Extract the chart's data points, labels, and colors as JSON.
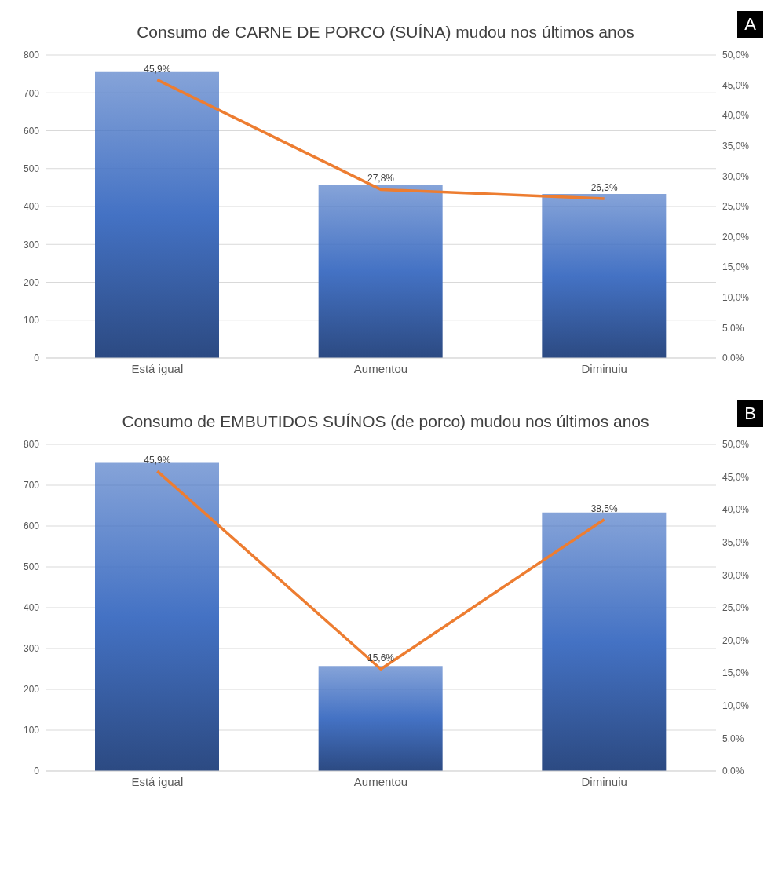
{
  "chart_data": [
    {
      "type": "bar",
      "title": "Consumo de CARNE DE PORCO (SUÍNA) mudou nos últimos anos",
      "annotations": [
        "A"
      ],
      "categories": [
        "Está igual",
        "Aumentou",
        "Diminuiu"
      ],
      "series": [
        {
          "color": "#4472c4",
          "values": [
            755,
            457,
            433
          ]
        },
        {
          "type": "line",
          "axis": "y2",
          "color": "#ed7d31",
          "values": [
            45.9,
            27.8,
            26.3
          ],
          "value_labels": [
            "45,9%",
            "27,8%",
            "26,3%"
          ]
        }
      ],
      "ylim": [
        0,
        800
      ],
      "yticks": [
        0,
        100,
        200,
        300,
        400,
        500,
        600,
        700,
        800
      ],
      "y2lim": [
        0,
        50
      ],
      "y2ticks": [
        {
          "value": 0,
          "label": "0,0%"
        },
        {
          "value": 5,
          "label": "5,0%"
        },
        {
          "value": 10,
          "label": "10,0%"
        },
        {
          "value": 15,
          "label": "15,0%"
        },
        {
          "value": 20,
          "label": "20,0%"
        },
        {
          "value": 25,
          "label": "25,0%"
        },
        {
          "value": 30,
          "label": "30,0%"
        },
        {
          "value": 35,
          "label": "35,0%"
        },
        {
          "value": 40,
          "label": "40,0%"
        },
        {
          "value": 45,
          "label": "45,0%"
        },
        {
          "value": 50,
          "label": "50,0%"
        }
      ],
      "grid": "y"
    },
    {
      "type": "bar",
      "title": "Consumo de EMBUTIDOS SUÍNOS (de porco) mudou nos últimos anos",
      "annotations": [
        "B"
      ],
      "categories": [
        "Está igual",
        "Aumentou",
        "Diminuiu"
      ],
      "series": [
        {
          "color": "#4472c4",
          "values": [
            755,
            257,
            633
          ]
        },
        {
          "type": "line",
          "axis": "y2",
          "color": "#ed7d31",
          "values": [
            45.9,
            15.6,
            38.5
          ],
          "value_labels": [
            "45,9%",
            "15,6%",
            "38,5%"
          ]
        }
      ],
      "ylim": [
        0,
        800
      ],
      "yticks": [
        0,
        100,
        200,
        300,
        400,
        500,
        600,
        700,
        800
      ],
      "y2lim": [
        0,
        50
      ],
      "y2ticks": [
        {
          "value": 0,
          "label": "0,0%"
        },
        {
          "value": 5,
          "label": "5,0%"
        },
        {
          "value": 10,
          "label": "10,0%"
        },
        {
          "value": 15,
          "label": "15,0%"
        },
        {
          "value": 20,
          "label": "20,0%"
        },
        {
          "value": 25,
          "label": "25,0%"
        },
        {
          "value": 30,
          "label": "30,0%"
        },
        {
          "value": 35,
          "label": "35,0%"
        },
        {
          "value": 40,
          "label": "40,0%"
        },
        {
          "value": 45,
          "label": "45,0%"
        },
        {
          "value": 50,
          "label": "50,0%"
        }
      ],
      "grid": "y"
    }
  ]
}
